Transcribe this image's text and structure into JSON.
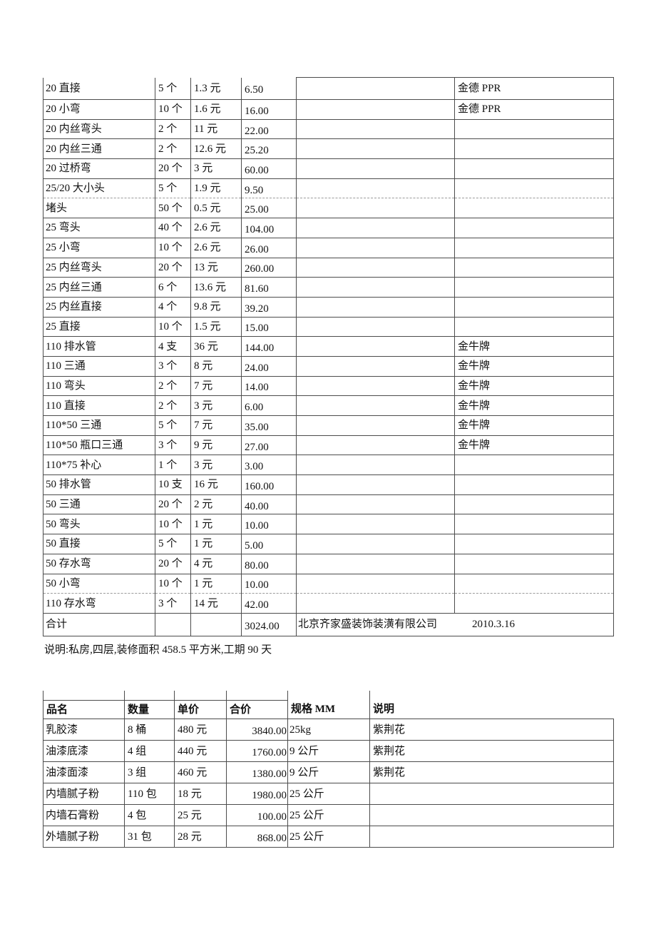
{
  "note": "说明:私房,四层,装修面积 458.5 平方米,工期 90 天",
  "materials_table": {
    "rows": [
      {
        "name": "20 直接",
        "qty": "5 个",
        "price": "1.3 元",
        "total": "6.50",
        "brand": "金德 PPR"
      },
      {
        "name": "20 小弯",
        "qty": "10 个",
        "price": "1.6 元",
        "total": "16.00",
        "brand": "金德 PPR"
      },
      {
        "name": "20 内丝弯头",
        "qty": "2 个",
        "price": "11 元",
        "total": "22.00",
        "brand": ""
      },
      {
        "name": "20 内丝三通",
        "qty": "2 个",
        "price": "12.6 元",
        "total": "25.20",
        "brand": ""
      },
      {
        "name": "20 过桥弯",
        "qty": "20 个",
        "price": "3 元",
        "total": "60.00",
        "brand": ""
      },
      {
        "name": "25/20 大小头",
        "qty": "5 个",
        "price": "1.9 元",
        "total": "9.50",
        "brand": "",
        "divider": "dashed"
      },
      {
        "name": "堵头",
        "qty": "50 个",
        "price": "0.5 元",
        "total": "25.00",
        "brand": ""
      },
      {
        "name": "25 弯头",
        "qty": "40 个",
        "price": "2.6 元",
        "total": "104.00",
        "brand": ""
      },
      {
        "name": "25 小弯",
        "qty": "10 个",
        "price": "2.6 元",
        "total": "26.00",
        "brand": ""
      },
      {
        "name": "25 内丝弯头",
        "qty": "20 个",
        "price": "13 元",
        "total": "260.00",
        "brand": ""
      },
      {
        "name": "25 内丝三通",
        "qty": "6 个",
        "price": "13.6 元",
        "total": "81.60",
        "brand": ""
      },
      {
        "name": "25 内丝直接",
        "qty": "4 个",
        "price": "9.8 元",
        "total": "39.20",
        "brand": ""
      },
      {
        "name": "25 直接",
        "qty": "10 个",
        "price": "1.5 元",
        "total": "15.00",
        "brand": ""
      },
      {
        "name": "110 排水管",
        "qty": "4 支",
        "price": "36 元",
        "total": "144.00",
        "brand": "金牛牌"
      },
      {
        "name": "110 三通",
        "qty": "3 个",
        "price": "8 元",
        "total": "24.00",
        "brand": "金牛牌"
      },
      {
        "name": "110 弯头",
        "qty": "2 个",
        "price": "7 元",
        "total": "14.00",
        "brand": "金牛牌"
      },
      {
        "name": "110 直接",
        "qty": "2 个",
        "price": "3 元",
        "total": "6.00",
        "brand": "金牛牌"
      },
      {
        "name": "110*50 三通",
        "qty": "5 个",
        "price": "7 元",
        "total": "35.00",
        "brand": "金牛牌"
      },
      {
        "name": "110*50 瓶口三通",
        "qty": "3 个",
        "price": "9 元",
        "total": "27.00",
        "brand": "金牛牌"
      },
      {
        "name": "110*75 补心",
        "qty": "1 个",
        "price": "3 元",
        "total": "3.00",
        "brand": ""
      },
      {
        "name": "50 排水管",
        "qty": "10 支",
        "price": "16 元",
        "total": "160.00",
        "brand": ""
      },
      {
        "name": "50 三通",
        "qty": "20 个",
        "price": "2 元",
        "total": "40.00",
        "brand": ""
      },
      {
        "name": "50 弯头",
        "qty": "10 个",
        "price": "1 元",
        "total": "10.00",
        "brand": ""
      },
      {
        "name": "50 直接",
        "qty": "5 个",
        "price": "1 元",
        "total": "5.00",
        "brand": ""
      },
      {
        "name": "50 存水弯",
        "qty": "20 个",
        "price": "4 元",
        "total": "80.00",
        "brand": ""
      },
      {
        "name": "50 小弯",
        "qty": "10 个",
        "price": "1 元",
        "total": "10.00",
        "brand": "",
        "divider": "dashed"
      },
      {
        "name": "110 存水弯",
        "qty": "3 个",
        "price": "14 元",
        "total": "42.00",
        "brand": ""
      }
    ],
    "summary": {
      "label": "合计",
      "total": "3024.00",
      "company": "北京齐家盛装饰装潢有限公司",
      "date": "2010.3.16"
    }
  },
  "paint_table": {
    "headers": [
      "品名",
      "数量",
      "单价",
      "合价",
      "规格 MM",
      "说明"
    ],
    "rows": [
      {
        "name": "乳胶漆",
        "qty": "8 桶",
        "price": "480 元",
        "total": "3840.00",
        "spec": "25kg",
        "note": "紫荆花"
      },
      {
        "name": "油漆底漆",
        "qty": "4 组",
        "price": "440 元",
        "total": "1760.00",
        "spec": "9 公斤",
        "note": "紫荆花"
      },
      {
        "name": "油漆面漆",
        "qty": "3 组",
        "price": "460 元",
        "total": "1380.00",
        "spec": "9 公斤",
        "note": "紫荆花"
      },
      {
        "name": "内墙腻子粉",
        "qty": "110 包",
        "price": "18 元",
        "total": "1980.00",
        "spec": "25 公斤",
        "note": ""
      },
      {
        "name": "内墙石膏粉",
        "qty": "4 包",
        "price": "25 元",
        "total": "100.00",
        "spec": "25 公斤",
        "note": ""
      },
      {
        "name": "外墙腻子粉",
        "qty": "31 包",
        "price": "28 元",
        "total": "868.00",
        "spec": "25 公斤",
        "note": ""
      }
    ]
  }
}
